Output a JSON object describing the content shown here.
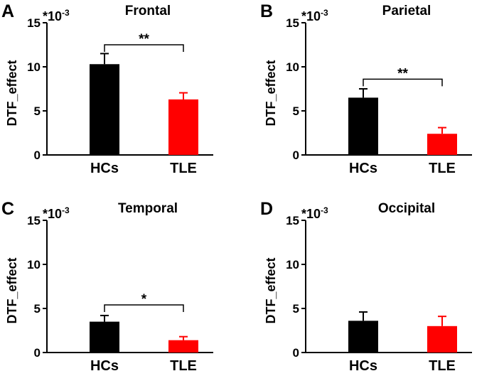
{
  "figure": {
    "width": 709,
    "height": 522
  },
  "chart_data": [
    {
      "type": "bar",
      "panel_label": "A",
      "title": "Frontal",
      "ylabel": "DTF_effect",
      "scale_label": "*10",
      "scale_exponent": "-3",
      "ylim": [
        0,
        15
      ],
      "yticks": [
        0,
        5,
        10,
        15
      ],
      "categories": [
        "HCs",
        "TLE"
      ],
      "values": [
        10.3,
        6.3
      ],
      "errors": [
        1.2,
        0.75
      ],
      "colors": [
        "#000000",
        "#ff0000"
      ],
      "significance": {
        "label": "**",
        "height": 12.5
      }
    },
    {
      "type": "bar",
      "panel_label": "B",
      "title": "Parietal",
      "ylabel": "DTF_effect",
      "scale_label": "*10",
      "scale_exponent": "-3",
      "ylim": [
        0,
        15
      ],
      "yticks": [
        0,
        5,
        10,
        15
      ],
      "categories": [
        "HCs",
        "TLE"
      ],
      "values": [
        6.5,
        2.4
      ],
      "errors": [
        1.0,
        0.7
      ],
      "colors": [
        "#000000",
        "#ff0000"
      ],
      "significance": {
        "label": "**",
        "height": 8.6
      }
    },
    {
      "type": "bar",
      "panel_label": "C",
      "title": "Temporal",
      "ylabel": "DTF_effect",
      "scale_label": "*10",
      "scale_exponent": "-3",
      "ylim": [
        0,
        15
      ],
      "yticks": [
        0,
        5,
        10,
        15
      ],
      "categories": [
        "HCs",
        "TLE"
      ],
      "values": [
        3.5,
        1.4
      ],
      "errors": [
        0.7,
        0.4
      ],
      "colors": [
        "#000000",
        "#ff0000"
      ],
      "significance": {
        "label": "*",
        "height": 5.4
      }
    },
    {
      "type": "bar",
      "panel_label": "D",
      "title": "Occipital",
      "ylabel": "DTF_effect",
      "scale_label": "*10",
      "scale_exponent": "-3",
      "ylim": [
        0,
        15
      ],
      "yticks": [
        0,
        5,
        10,
        15
      ],
      "categories": [
        "HCs",
        "TLE"
      ],
      "values": [
        3.6,
        3.0
      ],
      "errors": [
        1.0,
        1.1
      ],
      "colors": [
        "#000000",
        "#ff0000"
      ],
      "significance": null
    }
  ]
}
